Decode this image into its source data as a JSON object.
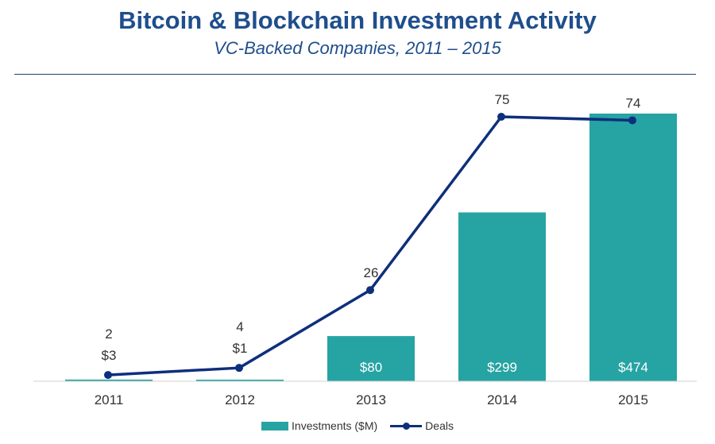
{
  "header": {
    "title": "Bitcoin & Blockchain Investment Activity",
    "subtitle": "VC-Backed Companies, 2011 – 2015"
  },
  "colors": {
    "bar": "#26a3a3",
    "line": "#0e2f7c",
    "title": "#1f4e8c"
  },
  "chart_data": {
    "type": "bar",
    "title": "Bitcoin & Blockchain Investment Activity",
    "subtitle": "VC-Backed Companies, 2011 – 2015",
    "categories": [
      "2011",
      "2012",
      "2013",
      "2014",
      "2015"
    ],
    "series": [
      {
        "name": "Investments ($M)",
        "type": "bar",
        "values": [
          3,
          1,
          80,
          299,
          474
        ],
        "labels": [
          "$3",
          "$1",
          "$80",
          "$299",
          "$474"
        ]
      },
      {
        "name": "Deals",
        "type": "line",
        "values": [
          2,
          4,
          26,
          75,
          74
        ],
        "labels": [
          "2",
          "4",
          "26",
          "75",
          "74"
        ]
      }
    ],
    "ylim_bars": [
      0,
      474
    ],
    "ylim_deals": [
      0,
      75
    ],
    "grid": false,
    "legend": "bottom-center"
  }
}
